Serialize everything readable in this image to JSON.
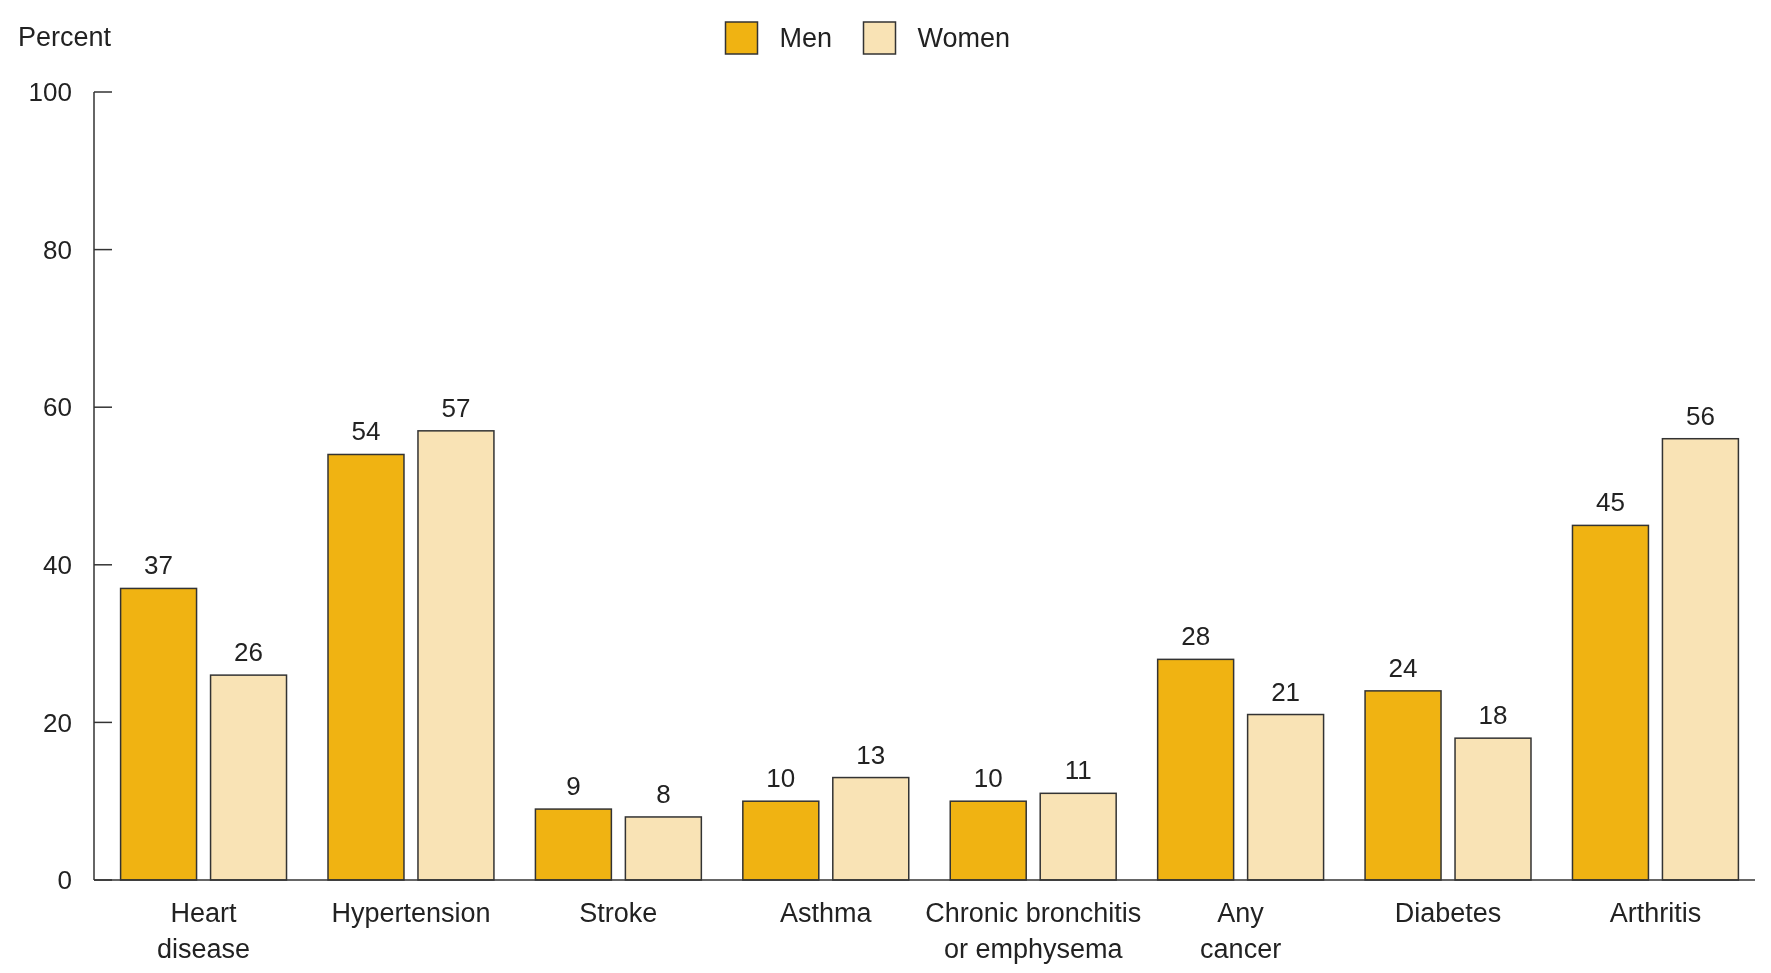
{
  "chart_data": {
    "type": "bar",
    "ylabel": "Percent",
    "categories": [
      "Heart disease",
      "Hypertension",
      "Stroke",
      "Asthma",
      "Chronic bronchitis or emphysema",
      "Any cancer",
      "Diabetes",
      "Arthritis"
    ],
    "series": [
      {
        "name": "Men",
        "color": "#f0b312",
        "values": [
          37,
          54,
          9,
          10,
          10,
          28,
          24,
          45
        ]
      },
      {
        "name": "Women",
        "color": "#f9e3b5",
        "values": [
          26,
          57,
          8,
          13,
          11,
          21,
          18,
          56
        ]
      }
    ],
    "ylim": [
      0,
      100
    ],
    "yticks": [
      0,
      20,
      40,
      60,
      80,
      100
    ],
    "grid": false,
    "legend": "top",
    "data_labels": true
  }
}
